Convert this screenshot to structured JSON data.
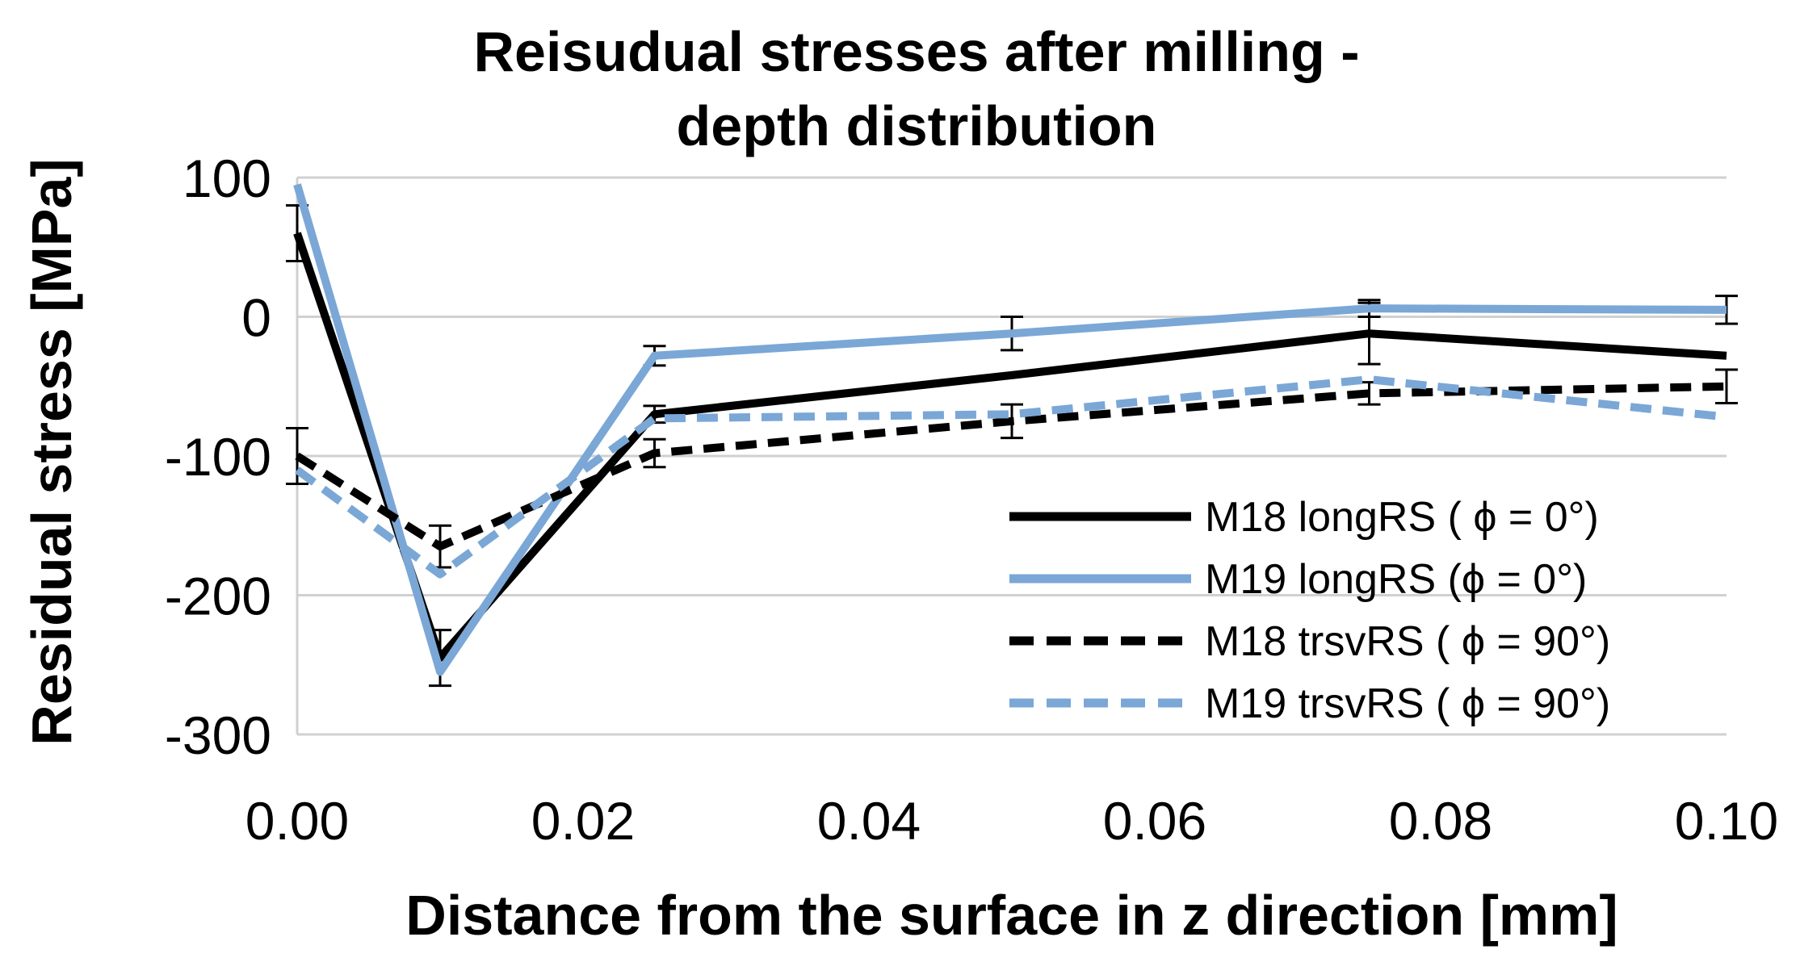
{
  "chart_data": {
    "type": "line",
    "title": [
      "Reisudual  stresses after milling  -",
      "depth distribution"
    ],
    "xlabel": "Distance from the surface in z direction [mm]",
    "ylabel": "Residual stress [MPa]",
    "xlim": [
      0,
      0.1
    ],
    "ylim": [
      -300,
      100
    ],
    "x_ticks": [
      0,
      0.02,
      0.04,
      0.06,
      0.08,
      0.1
    ],
    "x_tick_labels": [
      "0.00",
      "0.02",
      "0.04",
      "0.06",
      "0.08",
      "0.10"
    ],
    "y_ticks": [
      100,
      0,
      -100,
      -200,
      -300
    ],
    "y_tick_labels": [
      "100",
      "0",
      "-100",
      "-200",
      "-300"
    ],
    "grid": "horizontal",
    "legend_position": "bottom-right",
    "series": [
      {
        "name": "M18 longRS  ( ϕ = 0°)",
        "color": "#000000",
        "dash": "solid",
        "x": [
          0,
          0.01,
          0.025,
          0.05,
          0.075,
          0.1
        ],
        "y": [
          60,
          -245,
          -70,
          -42,
          -12,
          -28
        ],
        "err": [
          20,
          20,
          6,
          0,
          22,
          0
        ]
      },
      {
        "name": "M19 longRS  (ϕ = 0°)",
        "color": "#7aa7d6",
        "dash": "solid",
        "x": [
          0,
          0.01,
          0.025,
          0.05,
          0.075,
          0.1
        ],
        "y": [
          95,
          -255,
          -28,
          -12,
          6,
          5
        ],
        "err": [
          0,
          0,
          7,
          12,
          6,
          10
        ]
      },
      {
        "name": "M18 trsvRS  ( ϕ = 90°)",
        "color": "#000000",
        "dash": "dashed",
        "x": [
          0,
          0.01,
          0.025,
          0.05,
          0.075,
          0.1
        ],
        "y": [
          -100,
          -165,
          -98,
          -75,
          -55,
          -50
        ],
        "err": [
          20,
          15,
          10,
          12,
          8,
          12
        ]
      },
      {
        "name": "M19 trsvRS  ( ϕ = 90°)",
        "color": "#7aa7d6",
        "dash": "dashed",
        "x": [
          0,
          0.01,
          0.025,
          0.05,
          0.075,
          0.1
        ],
        "y": [
          -110,
          -185,
          -73,
          -70,
          -45,
          -72
        ],
        "err": [
          0,
          0,
          0,
          0,
          0,
          0
        ]
      }
    ]
  }
}
